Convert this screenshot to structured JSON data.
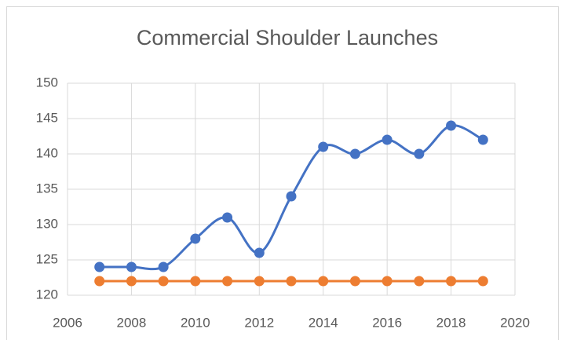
{
  "chart_data": {
    "type": "line",
    "title": "Commercial Shoulder Launches",
    "x": [
      2007,
      2008,
      2009,
      2010,
      2011,
      2012,
      2013,
      2014,
      2015,
      2016,
      2017,
      2018,
      2019
    ],
    "series": [
      {
        "color": "#4472c4",
        "values": [
          124,
          124,
          124,
          128,
          131,
          126,
          134,
          141,
          140,
          142,
          140,
          144,
          142
        ]
      },
      {
        "color": "#ed7d31",
        "values": [
          122,
          122,
          122,
          122,
          122,
          122,
          122,
          122,
          122,
          122,
          122,
          122,
          122
        ]
      }
    ],
    "xlim": [
      2006,
      2020
    ],
    "xticks": [
      2006,
      2008,
      2010,
      2012,
      2014,
      2016,
      2018,
      2020
    ],
    "ylim": [
      120,
      150
    ],
    "yticks": [
      120,
      125,
      130,
      135,
      140,
      145,
      150
    ],
    "grid": true,
    "smooth": true
  }
}
